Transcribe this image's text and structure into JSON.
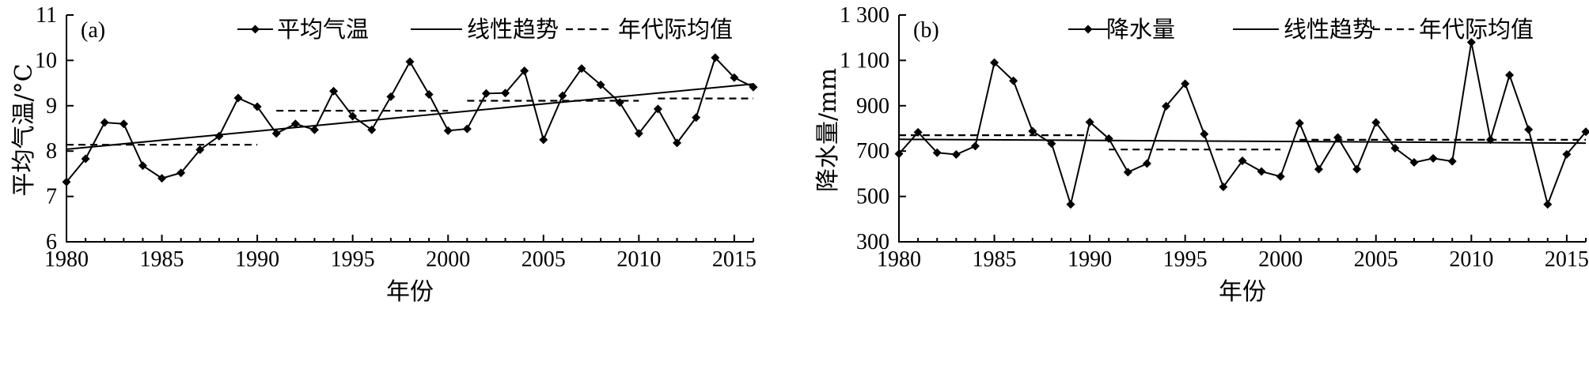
{
  "chart_data": [
    {
      "type": "line",
      "panel_label": "(a)",
      "xlabel": "年份",
      "ylabel": "平均气温/°C",
      "xlim": [
        1980,
        2016
      ],
      "ylim": [
        6,
        11
      ],
      "xticks": [
        1980,
        1985,
        1990,
        1995,
        2000,
        2005,
        2010,
        2015
      ],
      "yticks": [
        6,
        7,
        8,
        9,
        10,
        11
      ],
      "ytick_labels": [
        "6",
        "7",
        "8",
        "9",
        "10",
        "11"
      ],
      "legend": [
        "平均气温",
        "线性趋势",
        "年代际均值"
      ],
      "legend_position": "top-right",
      "x": [
        1980,
        1981,
        1982,
        1983,
        1984,
        1985,
        1986,
        1987,
        1988,
        1989,
        1990,
        1991,
        1992,
        1993,
        1994,
        1995,
        1996,
        1997,
        1998,
        1999,
        2000,
        2001,
        2002,
        2003,
        2004,
        2005,
        2006,
        2007,
        2008,
        2009,
        2010,
        2011,
        2012,
        2013,
        2014,
        2015,
        2016
      ],
      "series": [
        {
          "name": "平均气温",
          "style": "line-diamond",
          "values": [
            7.32,
            7.83,
            8.63,
            8.6,
            7.68,
            7.4,
            7.52,
            8.03,
            8.33,
            9.17,
            8.98,
            8.39,
            8.6,
            8.47,
            9.32,
            8.77,
            8.47,
            9.2,
            9.97,
            9.25,
            8.45,
            8.49,
            9.27,
            9.28,
            9.77,
            8.25,
            9.22,
            9.82,
            9.46,
            9.07,
            8.39,
            8.93,
            8.18,
            8.74,
            10.06,
            9.62,
            9.41
          ]
        },
        {
          "name": "线性趋势",
          "style": "solid",
          "x": [
            1980,
            2016
          ],
          "values": [
            8.04,
            9.48
          ]
        },
        {
          "name": "年代际均值",
          "style": "dashed",
          "segments": [
            {
              "x": [
                1980,
                1990
              ],
              "value": 8.14
            },
            {
              "x": [
                1991,
                2000
              ],
              "value": 8.89
            },
            {
              "x": [
                2001,
                2010
              ],
              "value": 9.11
            },
            {
              "x": [
                2011,
                2016
              ],
              "value": 9.16
            }
          ]
        }
      ]
    },
    {
      "type": "line",
      "panel_label": "(b)",
      "xlabel": "年份",
      "ylabel": "降水量/mm",
      "xlim": [
        1980,
        2016
      ],
      "ylim": [
        300,
        1300
      ],
      "xticks": [
        1980,
        1985,
        1990,
        1995,
        2000,
        2005,
        2010,
        2015
      ],
      "yticks": [
        300,
        500,
        700,
        900,
        1100,
        1300
      ],
      "ytick_labels": [
        "300",
        "500",
        "700",
        "900",
        "1 100",
        "1 300"
      ],
      "legend": [
        "降水量",
        "线性趋势",
        "年代际均值"
      ],
      "legend_position": "top-right",
      "x": [
        1980,
        1981,
        1982,
        1983,
        1984,
        1985,
        1986,
        1987,
        1988,
        1989,
        1990,
        1991,
        1992,
        1993,
        1994,
        1995,
        1996,
        1997,
        1998,
        1999,
        2000,
        2001,
        2002,
        2003,
        2004,
        2005,
        2006,
        2007,
        2008,
        2009,
        2010,
        2011,
        2012,
        2013,
        2014,
        2015,
        2016
      ],
      "series": [
        {
          "name": "降水量",
          "style": "line-diamond",
          "values": [
            688,
            783,
            693,
            685,
            722,
            1090,
            1010,
            788,
            733,
            465,
            828,
            755,
            607,
            645,
            898,
            997,
            775,
            542,
            657,
            610,
            588,
            823,
            620,
            760,
            620,
            826,
            713,
            650,
            668,
            655,
            1180,
            750,
            1035,
            795,
            465,
            686,
            785
          ]
        },
        {
          "name": "线性趋势",
          "style": "solid",
          "x": [
            1980,
            2016
          ],
          "values": [
            752,
            735
          ]
        },
        {
          "name": "年代际均值",
          "style": "dashed",
          "segments": [
            {
              "x": [
                1980,
                1990
              ],
              "value": 770
            },
            {
              "x": [
                1991,
                2000
              ],
              "value": 707
            },
            {
              "x": [
                2001,
                2016
              ],
              "value": 750
            }
          ]
        }
      ]
    }
  ]
}
